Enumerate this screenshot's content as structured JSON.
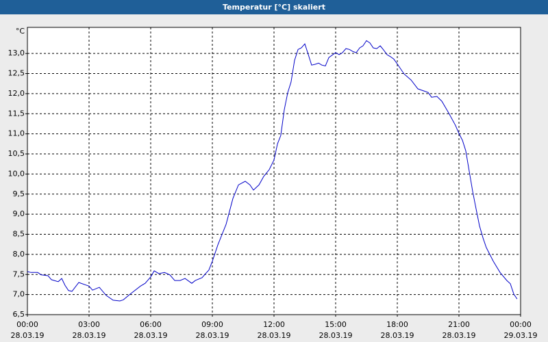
{
  "chart_data": {
    "type": "line",
    "title": "Temperatur [°C] skaliert",
    "y_label": "°C",
    "x": [
      0,
      0.17,
      0.5,
      0.67,
      1,
      1.17,
      1.5,
      1.67,
      1.83,
      2,
      2.17,
      2.5,
      3,
      3.17,
      3.5,
      3.83,
      4.17,
      4.5,
      4.67,
      5,
      5.5,
      5.73,
      6,
      6.17,
      6.4,
      6.67,
      6.93,
      7.17,
      7.43,
      7.67,
      8,
      8.17,
      8.5,
      8.67,
      8.83,
      9,
      9.27,
      9.67,
      10,
      10.27,
      10.6,
      10.83,
      11,
      11.27,
      11.5,
      11.77,
      12,
      12.17,
      12.33,
      12.5,
      12.67,
      12.83,
      13,
      13.17,
      13.33,
      13.5,
      13.67,
      13.83,
      14,
      14.17,
      14.33,
      14.5,
      14.67,
      15,
      15.17,
      15.33,
      15.5,
      15.67,
      15.83,
      16,
      16.17,
      16.33,
      16.5,
      16.67,
      16.83,
      17,
      17.17,
      17.33,
      17.5,
      17.67,
      17.83,
      18,
      18.33,
      18.67,
      19,
      19.33,
      19.5,
      19.67,
      19.93,
      20.17,
      20.5,
      20.83,
      21,
      21.17,
      21.33,
      21.5,
      21.67,
      21.83,
      22,
      22.17,
      22.33,
      22.5,
      22.67,
      23,
      23.33,
      23.5,
      23.67,
      23.83
    ],
    "series": [
      {
        "color": "#0000c8",
        "values": [
          7.57,
          7.55,
          7.55,
          7.49,
          7.47,
          7.37,
          7.32,
          7.4,
          7.23,
          7.1,
          7.08,
          7.3,
          7.21,
          7.11,
          7.18,
          6.98,
          6.86,
          6.84,
          6.87,
          7.01,
          7.21,
          7.28,
          7.44,
          7.59,
          7.52,
          7.55,
          7.49,
          7.35,
          7.35,
          7.4,
          7.28,
          7.35,
          7.42,
          7.52,
          7.61,
          7.83,
          8.24,
          8.75,
          9.39,
          9.73,
          9.82,
          9.73,
          9.6,
          9.73,
          9.94,
          10.11,
          10.35,
          10.75,
          10.96,
          11.6,
          12.03,
          12.29,
          12.83,
          13.1,
          13.14,
          13.24,
          12.97,
          12.71,
          12.73,
          12.76,
          12.71,
          12.69,
          12.9,
          13.02,
          12.97,
          13.02,
          13.12,
          13.1,
          13.05,
          13.02,
          13.14,
          13.19,
          13.32,
          13.26,
          13.14,
          13.12,
          13.19,
          13.09,
          12.97,
          12.92,
          12.86,
          12.74,
          12.49,
          12.34,
          12.12,
          12.06,
          12.03,
          11.91,
          11.93,
          11.81,
          11.52,
          11.21,
          11.01,
          10.84,
          10.58,
          10.07,
          9.56,
          9.14,
          8.71,
          8.41,
          8.17,
          8.0,
          7.83,
          7.55,
          7.35,
          7.27,
          7.01,
          6.89
        ]
      }
    ],
    "xlim": [
      0,
      24
    ],
    "xticks": [
      {
        "value": 0,
        "label": "00:00",
        "date": "28.03.19"
      },
      {
        "value": 3,
        "label": "03:00",
        "date": "28.03.19"
      },
      {
        "value": 6,
        "label": "06:00",
        "date": "28.03.19"
      },
      {
        "value": 9,
        "label": "09:00",
        "date": "28.03.19"
      },
      {
        "value": 12,
        "label": "12:00",
        "date": "28.03.19"
      },
      {
        "value": 15,
        "label": "15:00",
        "date": "28.03.19"
      },
      {
        "value": 18,
        "label": "18:00",
        "date": "28.03.19"
      },
      {
        "value": 21,
        "label": "21:00",
        "date": "28.03.19"
      },
      {
        "value": 24,
        "label": "00:00",
        "date": "29.03.19"
      }
    ],
    "ylim": [
      6.5,
      13.65
    ],
    "yticks": [
      {
        "value": 6.5,
        "label": "6,5"
      },
      {
        "value": 7,
        "label": "7,0"
      },
      {
        "value": 7.5,
        "label": "7,5"
      },
      {
        "value": 8,
        "label": "8,0"
      },
      {
        "value": 8.5,
        "label": "8,5"
      },
      {
        "value": 9,
        "label": "9,0"
      },
      {
        "value": 9.5,
        "label": "9,5"
      },
      {
        "value": 10,
        "label": "10,0"
      },
      {
        "value": 10.5,
        "label": "10,5"
      },
      {
        "value": 11,
        "label": "11,0"
      },
      {
        "value": 11.5,
        "label": "11,5"
      },
      {
        "value": 12,
        "label": "12,0"
      },
      {
        "value": 12.5,
        "label": "12,5"
      },
      {
        "value": 13,
        "label": "13,0"
      }
    ],
    "grid": true
  }
}
